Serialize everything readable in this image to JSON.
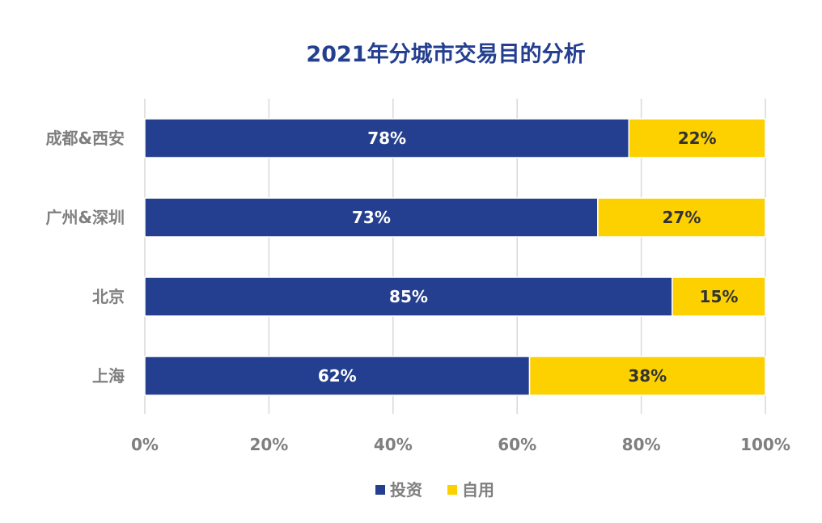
{
  "chart_data": {
    "type": "bar",
    "orientation": "horizontal",
    "stacked": true,
    "percent_stacked": true,
    "title": "2021年分城市交易目的分析",
    "categories": [
      "成都&西安",
      "广州&深圳",
      "北京",
      "上海"
    ],
    "series": [
      {
        "name": "投资",
        "color": "#243f8f",
        "label_color": "#ffffff",
        "values": [
          78,
          73,
          85,
          62
        ]
      },
      {
        "name": "自用",
        "color": "#fdd100",
        "label_color": "#333333",
        "values": [
          22,
          27,
          15,
          38
        ]
      }
    ],
    "data_labels": [
      [
        "78%",
        "73%",
        "85%",
        "62%"
      ],
      [
        "22%",
        "27%",
        "15%",
        "38%"
      ]
    ],
    "x_ticks": [
      "0%",
      "20%",
      "40%",
      "60%",
      "80%",
      "100%"
    ],
    "xlim": [
      0,
      100
    ],
    "xlabel": "",
    "ylabel": "",
    "grid": true,
    "legend_position": "bottom",
    "colors": {
      "title": "#243f8f",
      "category_text": "#7f7f7f",
      "tick_text": "#7f7f7f",
      "gridline": "#d9d9d9"
    }
  }
}
